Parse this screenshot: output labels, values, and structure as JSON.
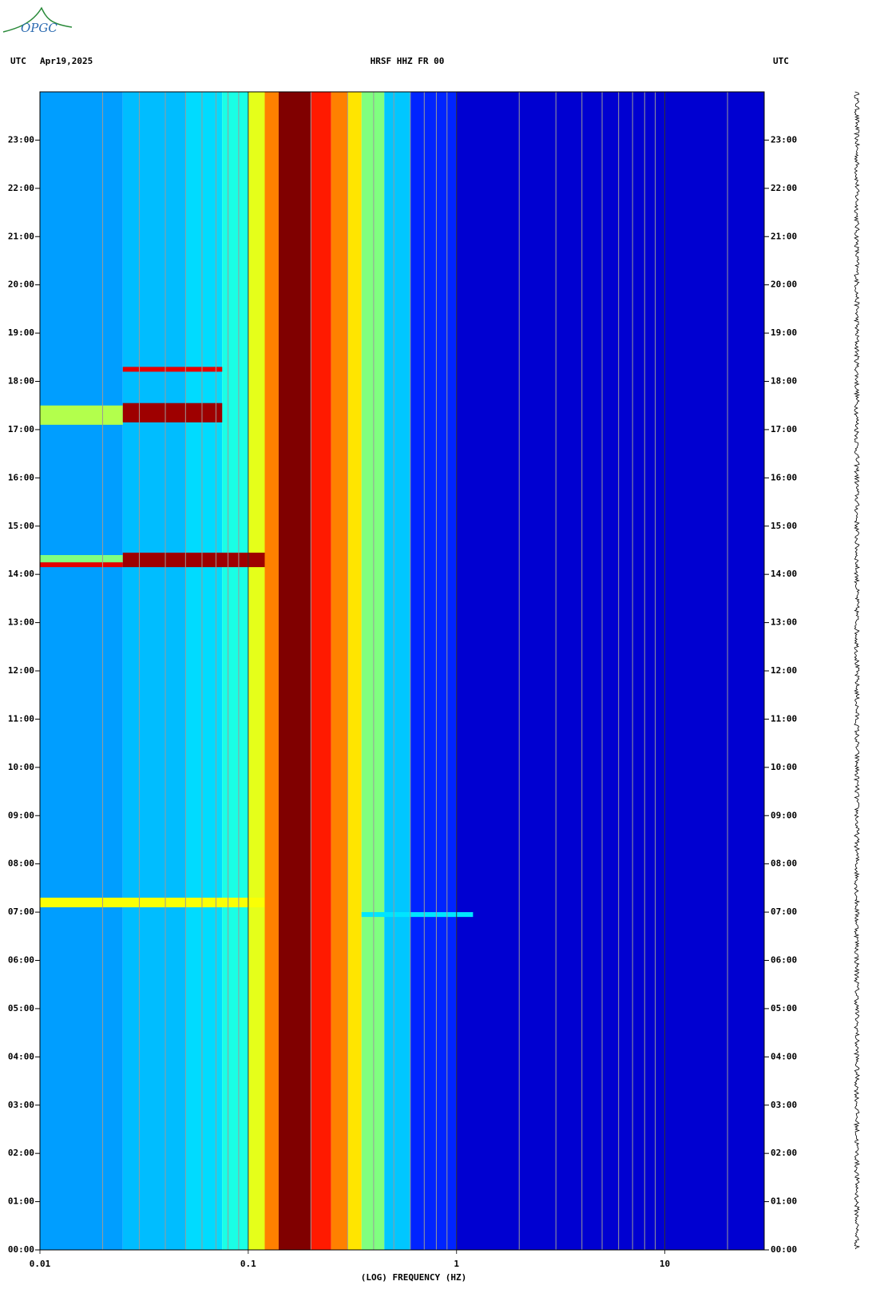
{
  "logo": "OPGC",
  "chart_data": {
    "type": "spectrogram",
    "header_left": [
      "UTC",
      "Apr19,2025"
    ],
    "title": "HRSF HHZ FR 00",
    "header_right": "UTC",
    "xlabel": "(LOG) FREQUENCY (HZ)",
    "xscale": "log",
    "xlim": [
      0.01,
      30
    ],
    "xticks": [
      0.01,
      0.1,
      1,
      10
    ],
    "minor_xticks": [
      0.02,
      0.03,
      0.04,
      0.05,
      0.06,
      0.07,
      0.08,
      0.09,
      0.2,
      0.3,
      0.4,
      0.5,
      0.6,
      0.7,
      0.8,
      0.9,
      2,
      3,
      4,
      5,
      6,
      7,
      8,
      9,
      20
    ],
    "ylim": [
      0,
      24
    ],
    "yticks": [
      {
        "value": 0,
        "label": "00:00"
      },
      {
        "value": 1,
        "label": "01:00"
      },
      {
        "value": 2,
        "label": "02:00"
      },
      {
        "value": 3,
        "label": "03:00"
      },
      {
        "value": 4,
        "label": "04:00"
      },
      {
        "value": 5,
        "label": "05:00"
      },
      {
        "value": 6,
        "label": "06:00"
      },
      {
        "value": 7,
        "label": "07:00"
      },
      {
        "value": 8,
        "label": "08:00"
      },
      {
        "value": 9,
        "label": "09:00"
      },
      {
        "value": 10,
        "label": "10:00"
      },
      {
        "value": 11,
        "label": "11:00"
      },
      {
        "value": 12,
        "label": "12:00"
      },
      {
        "value": 13,
        "label": "13:00"
      },
      {
        "value": 14,
        "label": "14:00"
      },
      {
        "value": 15,
        "label": "15:00"
      },
      {
        "value": 16,
        "label": "16:00"
      },
      {
        "value": 17,
        "label": "17:00"
      },
      {
        "value": 18,
        "label": "18:00"
      },
      {
        "value": 19,
        "label": "19:00"
      },
      {
        "value": 20,
        "label": "20:00"
      },
      {
        "value": 21,
        "label": "21:00"
      },
      {
        "value": 22,
        "label": "22:00"
      },
      {
        "value": 23,
        "label": "23:00"
      }
    ],
    "colormap": "jet",
    "bins": [
      0.01,
      0.025,
      0.05,
      0.075,
      0.1,
      0.12,
      0.14,
      0.2,
      0.25,
      0.3,
      0.35,
      0.45,
      0.6,
      1,
      30
    ],
    "levels": [
      0.28,
      0.31,
      0.34,
      0.4,
      0.6,
      0.75,
      1.0,
      0.85,
      0.75,
      0.65,
      0.5,
      0.32,
      0.16,
      0.08
    ],
    "events": [
      {
        "t": [
          14.15,
          14.25
        ],
        "f": [
          0.01,
          0.025
        ],
        "level": 0.9
      },
      {
        "t": [
          14.25,
          14.4
        ],
        "f": [
          0.01,
          0.025
        ],
        "level": 0.5
      },
      {
        "t": [
          14.15,
          14.45
        ],
        "f": [
          0.025,
          0.12
        ],
        "level": 0.97
      },
      {
        "t": [
          17.1,
          17.5
        ],
        "f": [
          0.01,
          0.025
        ],
        "level": 0.55
      },
      {
        "t": [
          17.15,
          17.55
        ],
        "f": [
          0.025,
          0.075
        ],
        "level": 0.97
      },
      {
        "t": [
          18.2,
          18.3
        ],
        "f": [
          0.025,
          0.075
        ],
        "level": 0.9
      },
      {
        "t": [
          7.1,
          7.3
        ],
        "f": [
          0.01,
          0.12
        ],
        "level": 0.62
      },
      {
        "t": [
          6.9,
          7.0
        ],
        "f": [
          0.35,
          1.2
        ],
        "level": 0.35
      }
    ]
  }
}
